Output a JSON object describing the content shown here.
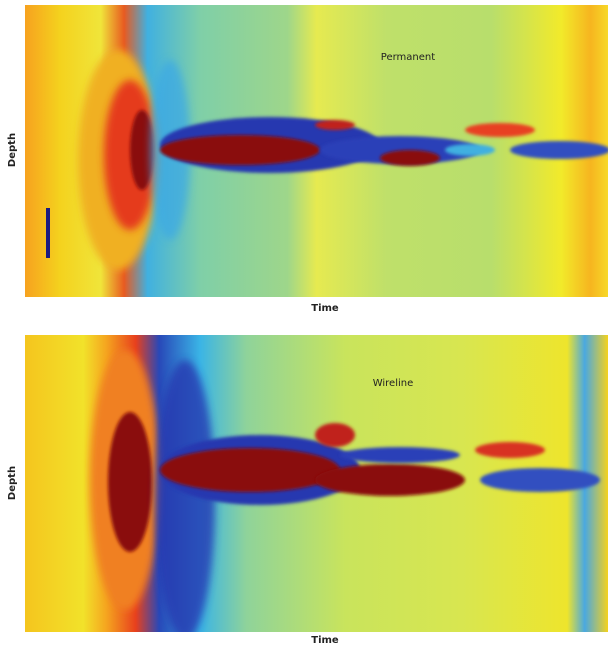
{
  "panels": [
    {
      "label": "Permanent",
      "x_label": "Time",
      "y_label": "Depth"
    },
    {
      "label": "Wireline",
      "x_label": "Time",
      "y_label": "Depth"
    }
  ]
}
